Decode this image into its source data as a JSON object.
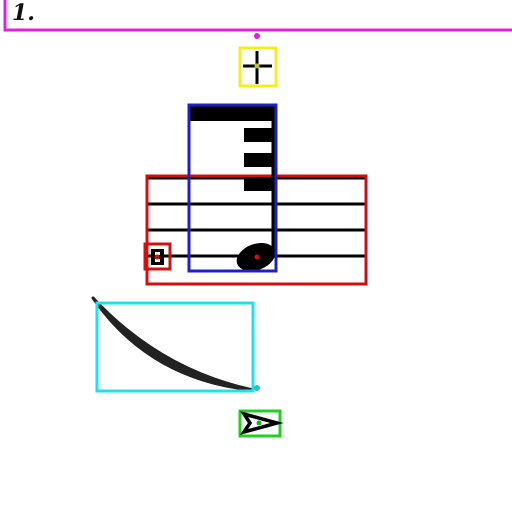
{
  "score": {
    "fragment_label": "1."
  },
  "annotations": [
    {
      "name": "fragment-box",
      "color": "#e020e0"
    },
    {
      "name": "fermata-box",
      "color": "#f0f020"
    },
    {
      "name": "note-flag-box",
      "color": "#2020c0"
    },
    {
      "name": "staff-box",
      "color": "#d01010"
    },
    {
      "name": "rest-box",
      "color": "#d01010"
    },
    {
      "name": "slur-box",
      "color": "#20e0f0"
    },
    {
      "name": "accent-box",
      "color": "#20d020"
    }
  ]
}
